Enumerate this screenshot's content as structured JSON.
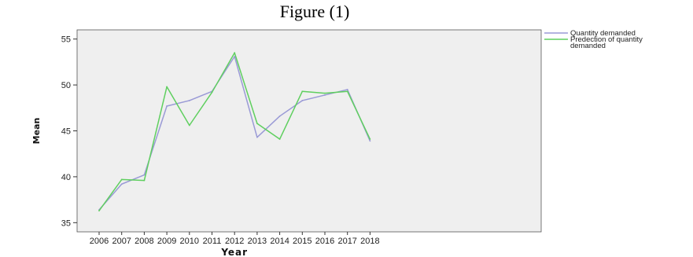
{
  "figure_title": "Figure (1)",
  "chart_data": {
    "type": "line",
    "title": "",
    "xlabel": "Year",
    "ylabel": "Mean",
    "categories": [
      "2006",
      "2007",
      "2008",
      "2009",
      "2010",
      "2011",
      "2012",
      "2013",
      "2014",
      "2015",
      "2016",
      "2017",
      "2018"
    ],
    "ylim": [
      34,
      56
    ],
    "yticks": [
      35,
      40,
      45,
      50,
      55
    ],
    "grid": false,
    "legend_position": "top-right",
    "plot_background": "#efefef",
    "series": [
      {
        "name": "Quantity demanded",
        "color": "#9a9ad6",
        "values": [
          36.4,
          39.2,
          40.2,
          47.7,
          48.3,
          49.3,
          53.1,
          44.3,
          46.6,
          48.3,
          48.9,
          49.5,
          43.9
        ]
      },
      {
        "name": "Predection of quantity demanded",
        "legend_lines": [
          "Predection of quantity",
          "demanded"
        ],
        "color": "#5fcf5f",
        "values": [
          36.3,
          39.7,
          39.6,
          49.8,
          45.6,
          49.2,
          53.5,
          45.8,
          44.1,
          49.3,
          49.1,
          49.3,
          44.1
        ]
      }
    ]
  }
}
